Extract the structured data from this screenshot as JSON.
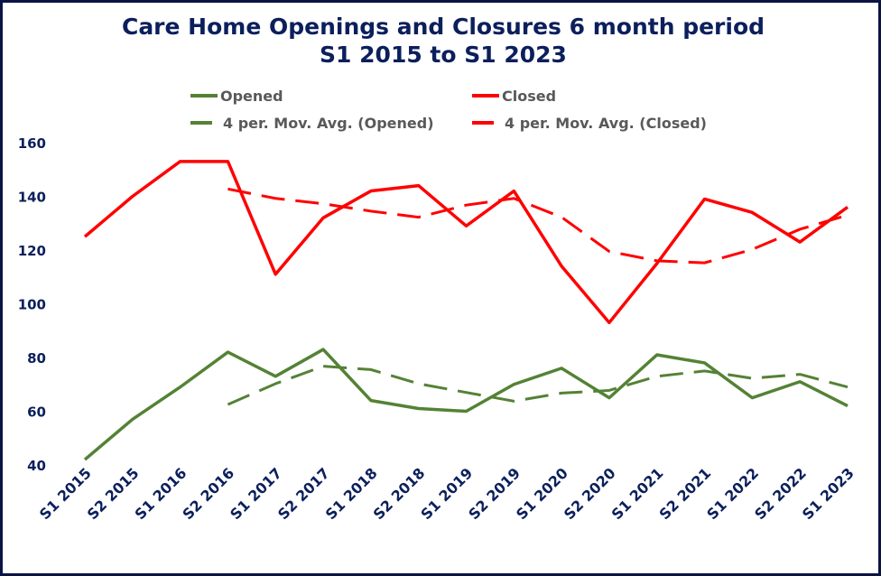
{
  "chart_data": {
    "type": "line",
    "title": [
      "Care Home Openings and Closures 6 month period",
      "S1 2015 to S1 2023"
    ],
    "xlabel": "",
    "ylabel": "",
    "ylim": [
      40,
      160
    ],
    "yticks": [
      40,
      60,
      80,
      100,
      120,
      140,
      160
    ],
    "grid": false,
    "legend_position": "top",
    "categories": [
      "S1 2015",
      "S2 2015",
      "S1 2016",
      "S2 2016",
      "S1 2017",
      "S2 2017",
      "S1 2018",
      "S2 2018",
      "S1 2019",
      "S2 2019",
      "S1 2020",
      "S2 2020",
      "S1 2021",
      "S2 2021",
      "S1 2022",
      "S2 2022",
      "S1 2023"
    ],
    "series": [
      {
        "name": "Opened",
        "color": "#548235",
        "dashed": false,
        "values": [
          42,
          57,
          69,
          82,
          73,
          83,
          64,
          61,
          60,
          70,
          76,
          65,
          81,
          78,
          65,
          71,
          62
        ]
      },
      {
        "name": "Closed",
        "color": "#ff0000",
        "dashed": false,
        "values": [
          125,
          140,
          153,
          153,
          111,
          132,
          142,
          144,
          129,
          142,
          114,
          93,
          115,
          139,
          134,
          123,
          136
        ]
      }
    ],
    "trendlines": [
      {
        "name": "4 per. Mov. Avg. (Opened)",
        "of": "Opened",
        "period": 4,
        "color": "#548235",
        "dashed": true
      },
      {
        "name": "4 per. Mov. Avg. (Closed)",
        "of": "Closed",
        "period": 4,
        "color": "#ff0000",
        "dashed": true
      }
    ],
    "colors": {
      "title": "#0b1f5c",
      "axis_text": "#0b1f5c",
      "legend_text": "#595959"
    }
  }
}
